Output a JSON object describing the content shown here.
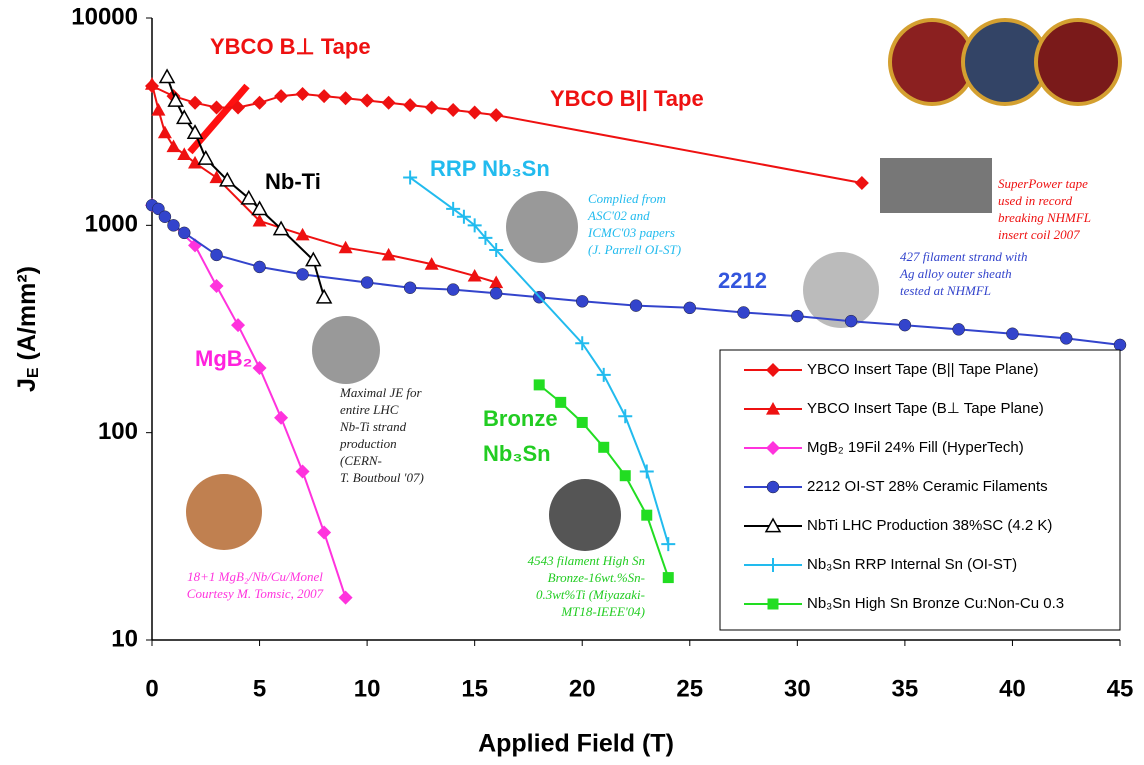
{
  "chart_data": {
    "type": "line",
    "log_y": true,
    "legend_corner": "lower right",
    "x_label": "Applied Field (T)",
    "y_label": {
      "main": "J",
      "sub": "E",
      "rest": " (A/mm²)"
    },
    "xlim": [
      0,
      45
    ],
    "xticks": [
      0,
      5,
      10,
      15,
      20,
      25,
      30,
      35,
      40,
      45
    ],
    "ylim": [
      10,
      10000
    ],
    "yticks": [
      10,
      100,
      1000,
      10000
    ],
    "series": [
      {
        "name": "YBCO Insert Tape (B|| Tape Plane)",
        "color": "#ee1111",
        "marker": "diamond",
        "x": [
          0,
          1,
          2,
          3,
          4,
          5,
          6,
          7,
          8,
          9,
          10,
          11,
          12,
          13,
          14,
          15,
          16,
          33
        ],
        "values": [
          4700,
          4200,
          3900,
          3700,
          3700,
          3900,
          4200,
          4300,
          4200,
          4100,
          4000,
          3900,
          3800,
          3700,
          3600,
          3500,
          3400,
          1600
        ]
      },
      {
        "name": "YBCO Insert Tape (B⊥ Tape Plane)",
        "color": "#ee1111",
        "marker": "triangle",
        "x": [
          0,
          0.3,
          0.6,
          1,
          1.5,
          2,
          3,
          5,
          7,
          9,
          11,
          13,
          15,
          16
        ],
        "values": [
          4800,
          3600,
          2800,
          2400,
          2200,
          2000,
          1700,
          1050,
          900,
          780,
          720,
          650,
          570,
          530
        ]
      },
      {
        "name": "MgB₂ 19Fil 24% Fill (HyperTech)",
        "color": "#ff33dd",
        "marker": "diamond",
        "x": [
          0,
          2,
          3,
          4,
          5,
          6,
          7,
          8,
          9
        ],
        "values": [
          1250,
          800,
          510,
          330,
          205,
          118,
          65,
          33,
          16
        ]
      },
      {
        "name": "2212 OI-ST 28% Ceramic Filaments",
        "color": "#3344cc",
        "marker": "circle",
        "x": [
          0,
          0.3,
          0.6,
          1,
          1.5,
          3,
          5,
          7,
          10,
          12,
          14,
          16,
          18,
          20,
          22.5,
          25,
          27.5,
          30,
          32.5,
          35,
          37.5,
          40,
          42.5,
          45
        ],
        "values": [
          1250,
          1200,
          1100,
          1000,
          920,
          720,
          630,
          580,
          530,
          500,
          490,
          470,
          450,
          430,
          410,
          400,
          380,
          365,
          345,
          330,
          315,
          300,
          285,
          265
        ]
      },
      {
        "name": "NbTi LHC Production 38%SC (4.2  K)",
        "color": "#000000",
        "marker": "triangle-open",
        "x": [
          0.7,
          1.1,
          1.5,
          2,
          2.5,
          3.5,
          4.5,
          5,
          6,
          7.5,
          8
        ],
        "values": [
          5200,
          4000,
          3300,
          2800,
          2100,
          1650,
          1350,
          1200,
          960,
          680,
          450
        ]
      },
      {
        "name": "Nb₃Sn RRP Internal Sn (OI-ST)",
        "color": "#22bbee",
        "marker": "plus",
        "x": [
          12,
          14,
          14.5,
          15,
          15.5,
          16,
          20,
          21,
          22,
          23,
          24
        ],
        "values": [
          1700,
          1200,
          1100,
          1000,
          870,
          760,
          270,
          190,
          120,
          65,
          29
        ]
      },
      {
        "name": "Nb₃Sn High Sn Bronze Cu:Non-Cu 0.3",
        "color": "#22dd22",
        "marker": "square",
        "x": [
          18,
          19,
          20,
          21,
          22,
          23,
          24
        ],
        "values": [
          170,
          140,
          112,
          85,
          62,
          40,
          20
        ]
      }
    ],
    "annotations": [
      {
        "lines": [
          "YBCO B⊥ Tape"
        ],
        "color": "#ee1111"
      },
      {
        "lines": [
          "YBCO B|| Tape"
        ],
        "color": "#ee1111"
      },
      {
        "lines": [
          "Nb-Ti"
        ],
        "color": "#000000"
      },
      {
        "lines": [
          "RRP Nb₃Sn"
        ],
        "color": "#22bbee"
      },
      {
        "lines": [
          "2212"
        ],
        "color": "#3355dd"
      },
      {
        "lines": [
          "MgB₂"
        ],
        "color": "#ff22dd"
      },
      {
        "lines": [
          "Bronze",
          "Nb₃Sn"
        ],
        "color": "#22cc22"
      },
      {
        "lines": [
          "SuperPower tape",
          "used in record",
          "breaking NHMFL",
          "insert coil 2007"
        ],
        "color": "#ee1111"
      },
      {
        "lines": [
          "Complied from",
          "ASC'02 and",
          "ICMC'03 papers",
          "(J. Parrell OI-ST)"
        ],
        "color": "#22bbee"
      },
      {
        "lines": [
          "427 filament strand with",
          "Ag alloy outer sheath",
          "tested at NHMFL"
        ],
        "color": "#3344cc"
      },
      {
        "lines": [
          "Maximal JE for",
          "entire LHC",
          "Nb-Ti strand",
          "production",
          "(CERN-",
          "T. Boutboul '07)"
        ],
        "color": "#222222"
      },
      {
        "lines": [
          "4543 filament High Sn",
          "Bronze-16wt.%Sn-",
          "0.3wt%Ti (Miyazaki-",
          "MT18-IEEE'04)"
        ],
        "color": "#22cc22"
      },
      {
        "lines": [
          "18+1 MgB₂/Nb/Cu/Monel",
          "Courtesy M. Tomsic, 2007"
        ],
        "color": "#ff33dd"
      }
    ]
  }
}
